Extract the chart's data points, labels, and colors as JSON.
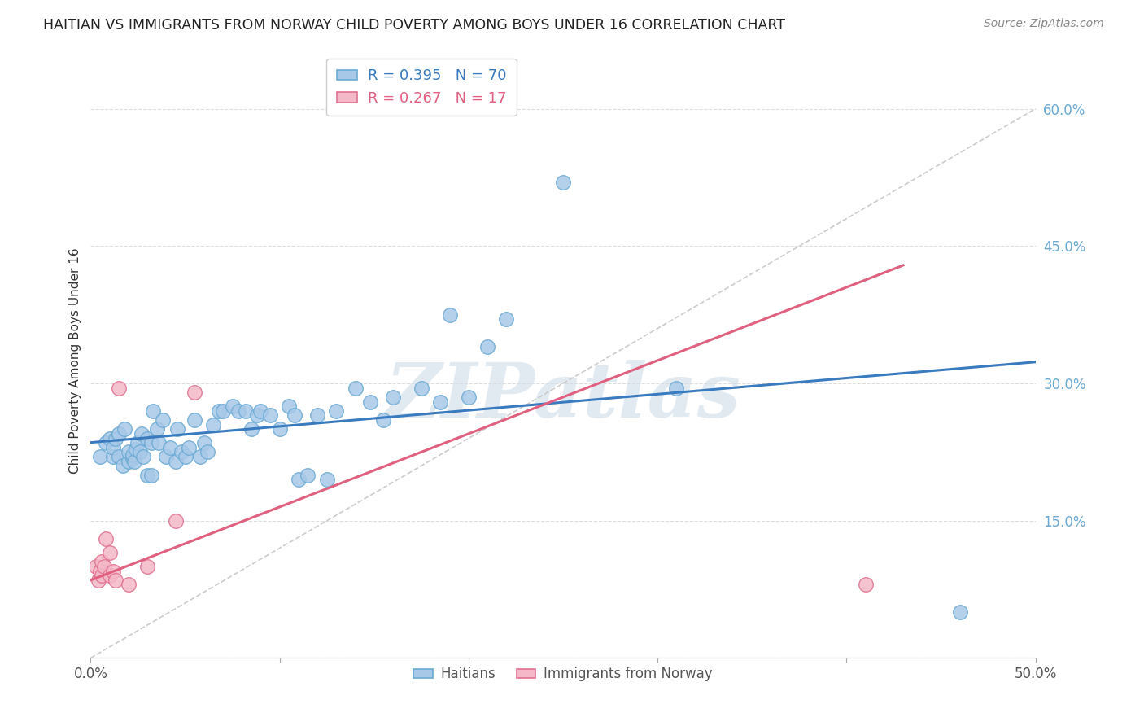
{
  "title": "HAITIAN VS IMMIGRANTS FROM NORWAY CHILD POVERTY AMONG BOYS UNDER 16 CORRELATION CHART",
  "source": "Source: ZipAtlas.com",
  "ylabel": "Child Poverty Among Boys Under 16",
  "watermark": "ZIPatlas",
  "xlim": [
    0.0,
    0.5
  ],
  "ylim": [
    0.0,
    0.65
  ],
  "yticks": [
    0.0,
    0.15,
    0.3,
    0.45,
    0.6
  ],
  "xticks": [
    0.0,
    0.1,
    0.2,
    0.3,
    0.4,
    0.5
  ],
  "ytick_labels": [
    "",
    "15.0%",
    "30.0%",
    "45.0%",
    "60.0%"
  ],
  "xtick_labels": [
    "0.0%",
    "",
    "",
    "",
    "",
    "50.0%"
  ],
  "blue_color": "#a8c8e8",
  "blue_edge": "#6aaad4",
  "pink_color": "#f4b8c8",
  "pink_edge": "#e07090",
  "line_blue": "#3a7bbf",
  "line_pink": "#e06080",
  "tick_color": "#6aaad4",
  "legend_R_blue": "R = 0.395",
  "legend_N_blue": "N = 70",
  "legend_R_pink": "R = 0.267",
  "legend_N_pink": "N = 17",
  "legend_label_blue": "Haitians",
  "legend_label_pink": "Immigrants from Norway",
  "blue_x": [
    0.005,
    0.008,
    0.01,
    0.012,
    0.012,
    0.013,
    0.015,
    0.015,
    0.017,
    0.018,
    0.02,
    0.02,
    0.022,
    0.022,
    0.023,
    0.024,
    0.025,
    0.026,
    0.027,
    0.028,
    0.03,
    0.03,
    0.032,
    0.032,
    0.033,
    0.035,
    0.036,
    0.038,
    0.04,
    0.042,
    0.045,
    0.046,
    0.048,
    0.05,
    0.052,
    0.055,
    0.058,
    0.06,
    0.062,
    0.065,
    0.068,
    0.07,
    0.075,
    0.078,
    0.082,
    0.085,
    0.088,
    0.09,
    0.095,
    0.1,
    0.105,
    0.108,
    0.11,
    0.115,
    0.12,
    0.125,
    0.13,
    0.14,
    0.148,
    0.155,
    0.16,
    0.175,
    0.185,
    0.19,
    0.2,
    0.21,
    0.22,
    0.25,
    0.31,
    0.46
  ],
  "blue_y": [
    0.22,
    0.235,
    0.24,
    0.22,
    0.23,
    0.24,
    0.22,
    0.245,
    0.21,
    0.25,
    0.215,
    0.225,
    0.218,
    0.222,
    0.215,
    0.228,
    0.235,
    0.225,
    0.245,
    0.22,
    0.2,
    0.24,
    0.2,
    0.235,
    0.27,
    0.25,
    0.235,
    0.26,
    0.22,
    0.23,
    0.215,
    0.25,
    0.225,
    0.22,
    0.23,
    0.26,
    0.22,
    0.235,
    0.225,
    0.255,
    0.27,
    0.27,
    0.275,
    0.27,
    0.27,
    0.25,
    0.265,
    0.27,
    0.265,
    0.25,
    0.275,
    0.265,
    0.195,
    0.2,
    0.265,
    0.195,
    0.27,
    0.295,
    0.28,
    0.26,
    0.285,
    0.295,
    0.28,
    0.375,
    0.285,
    0.34,
    0.37,
    0.52,
    0.295,
    0.05
  ],
  "pink_x": [
    0.003,
    0.004,
    0.005,
    0.006,
    0.006,
    0.007,
    0.008,
    0.01,
    0.01,
    0.012,
    0.013,
    0.015,
    0.02,
    0.03,
    0.045,
    0.055,
    0.41
  ],
  "pink_y": [
    0.1,
    0.085,
    0.095,
    0.09,
    0.105,
    0.1,
    0.13,
    0.09,
    0.115,
    0.095,
    0.085,
    0.295,
    0.08,
    0.1,
    0.15,
    0.29,
    0.08
  ],
  "diag_slope": 1.2,
  "blue_reg_slope": 0.42,
  "blue_reg_intercept": 0.215,
  "pink_reg_slope": 0.8,
  "pink_reg_intercept": 0.085
}
